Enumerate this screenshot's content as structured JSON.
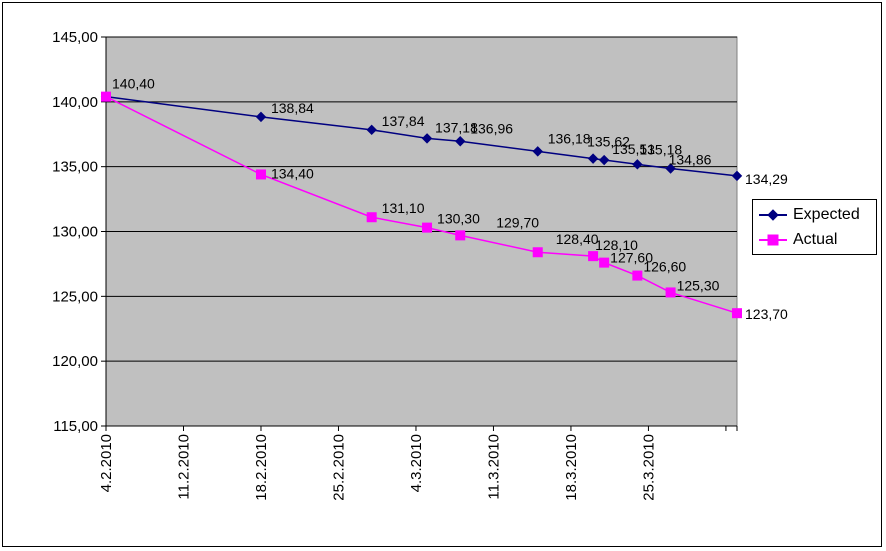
{
  "chart_data": {
    "type": "line",
    "title": "",
    "xlabel": "",
    "ylabel": "",
    "x_tick_labels": [
      "4.2.2010",
      "11.2.2010",
      "18.2.2010",
      "25.2.2010",
      "4.3.2010",
      "11.3.2010",
      "18.3.2010",
      "25.3.2010"
    ],
    "y_tick_labels": [
      "115,00",
      "120,00",
      "125,00",
      "130,00",
      "135,00",
      "140,00",
      "145,00"
    ],
    "xlim": [
      "2010-02-04",
      "2010-04-02"
    ],
    "ylim": [
      115,
      145
    ],
    "y_ticks": [
      115,
      120,
      125,
      130,
      135,
      140,
      145
    ],
    "grid": "horizontal",
    "plot_background": "#c0c0c0",
    "legend_position": "right",
    "series": [
      {
        "name": "Expected",
        "color": "#000080",
        "marker": "diamond",
        "points": [
          {
            "x": "2010-02-04",
            "y": 140.4,
            "label": "140,40"
          },
          {
            "x": "2010-02-18",
            "y": 138.84,
            "label": "138,84"
          },
          {
            "x": "2010-02-28",
            "y": 137.84,
            "label": "137,84"
          },
          {
            "x": "2010-03-05",
            "y": 137.18,
            "label": "137,18"
          },
          {
            "x": "2010-03-08",
            "y": 136.96,
            "label": "136,96"
          },
          {
            "x": "2010-03-15",
            "y": 136.18,
            "label": "136,18"
          },
          {
            "x": "2010-03-20",
            "y": 135.62,
            "label": "135,62"
          },
          {
            "x": "2010-03-21",
            "y": 135.51,
            "label": "135,51"
          },
          {
            "x": "2010-03-24",
            "y": 135.18,
            "label": "135,18"
          },
          {
            "x": "2010-03-27",
            "y": 134.86,
            "label": "134,86"
          },
          {
            "x": "2010-04-02",
            "y": 134.29,
            "label": "134,29"
          }
        ]
      },
      {
        "name": "Actual",
        "color": "#ff00ff",
        "marker": "square",
        "points": [
          {
            "x": "2010-02-04",
            "y": 140.4,
            "label": ""
          },
          {
            "x": "2010-02-18",
            "y": 134.4,
            "label": "134,40"
          },
          {
            "x": "2010-02-28",
            "y": 131.1,
            "label": "131,10"
          },
          {
            "x": "2010-03-05",
            "y": 130.3,
            "label": "130,30"
          },
          {
            "x": "2010-03-08",
            "y": 129.7,
            "label": "129,70"
          },
          {
            "x": "2010-03-15",
            "y": 128.4,
            "label": "128,40"
          },
          {
            "x": "2010-03-20",
            "y": 128.1,
            "label": "128,10"
          },
          {
            "x": "2010-03-21",
            "y": 127.6,
            "label": "127,60"
          },
          {
            "x": "2010-03-24",
            "y": 126.6,
            "label": "126,60"
          },
          {
            "x": "2010-03-27",
            "y": 125.3,
            "label": "125,30"
          },
          {
            "x": "2010-04-02",
            "y": 123.7,
            "label": "123,70"
          }
        ]
      }
    ]
  }
}
